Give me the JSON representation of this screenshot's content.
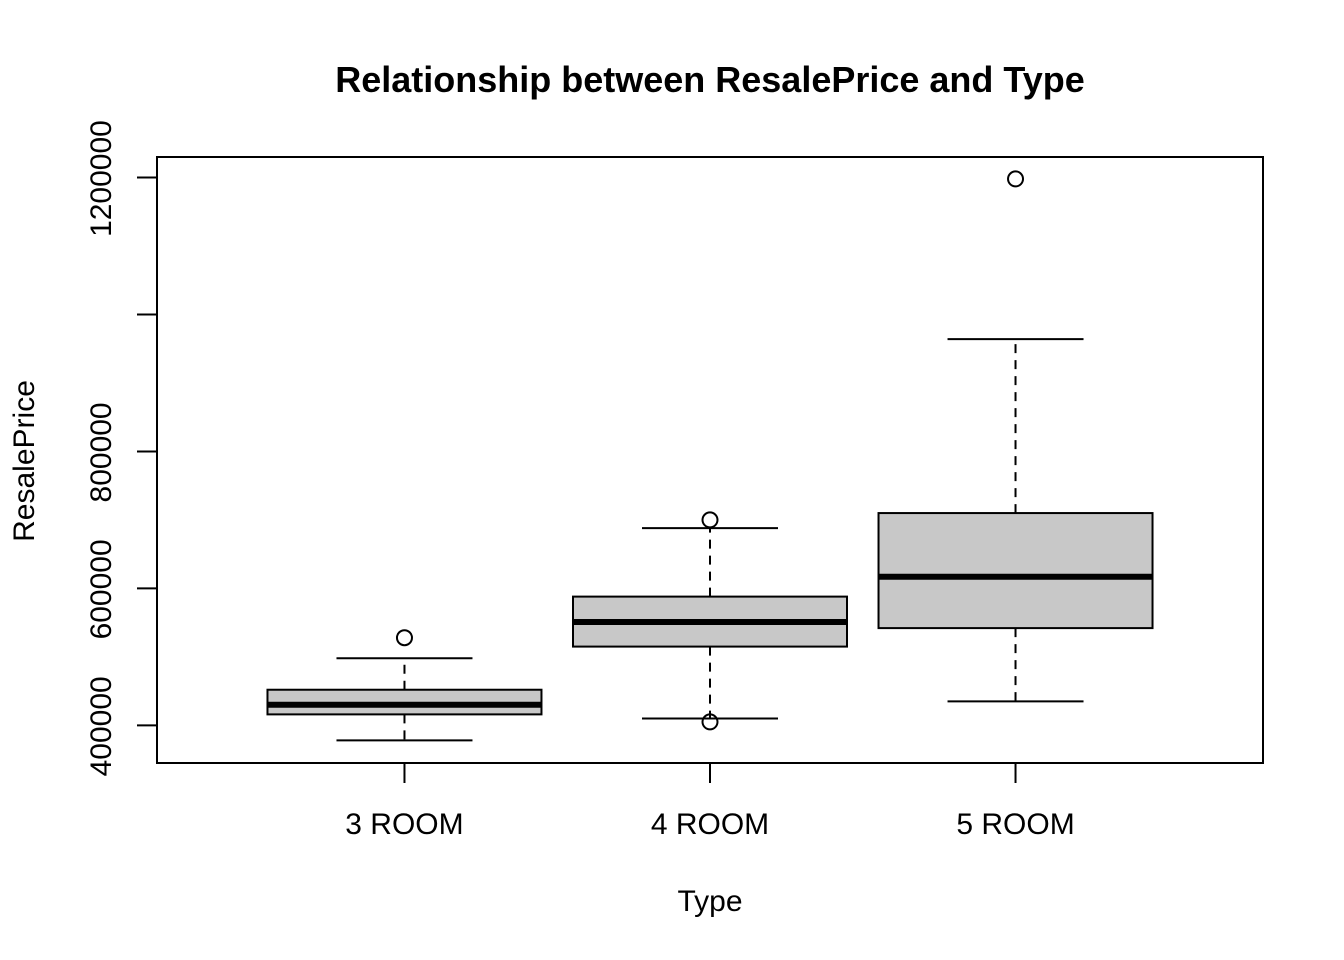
{
  "chart_data": {
    "type": "box",
    "title": "Relationship between ResalePrice and Type",
    "xlabel": "Type",
    "ylabel": "ResalePrice",
    "ylim": [
      345000,
      1230000
    ],
    "y_ticks": [
      400000,
      600000,
      800000,
      1000000,
      1200000
    ],
    "y_tick_labels": [
      "400000",
      "600000",
      "800000",
      "",
      "1200000"
    ],
    "grid": false,
    "legend": "none",
    "box_fill": "#c8c8c8",
    "line_color": "#000000",
    "categories": [
      "3 ROOM",
      "4 ROOM",
      "5 ROOM"
    ],
    "boxes": [
      {
        "category": "3 ROOM",
        "whisker_low": 378000,
        "q1": 416000,
        "median": 430000,
        "q3": 452000,
        "whisker_high": 498000,
        "outliers": [
          528000
        ]
      },
      {
        "category": "4 ROOM",
        "whisker_low": 410000,
        "q1": 515000,
        "median": 551000,
        "q3": 588000,
        "whisker_high": 688000,
        "outliers": [
          700000,
          405000
        ]
      },
      {
        "category": "5 ROOM",
        "whisker_low": 435000,
        "q1": 542000,
        "median": 617000,
        "q3": 710000,
        "whisker_high": 964000,
        "outliers": [
          1198000
        ]
      }
    ]
  }
}
